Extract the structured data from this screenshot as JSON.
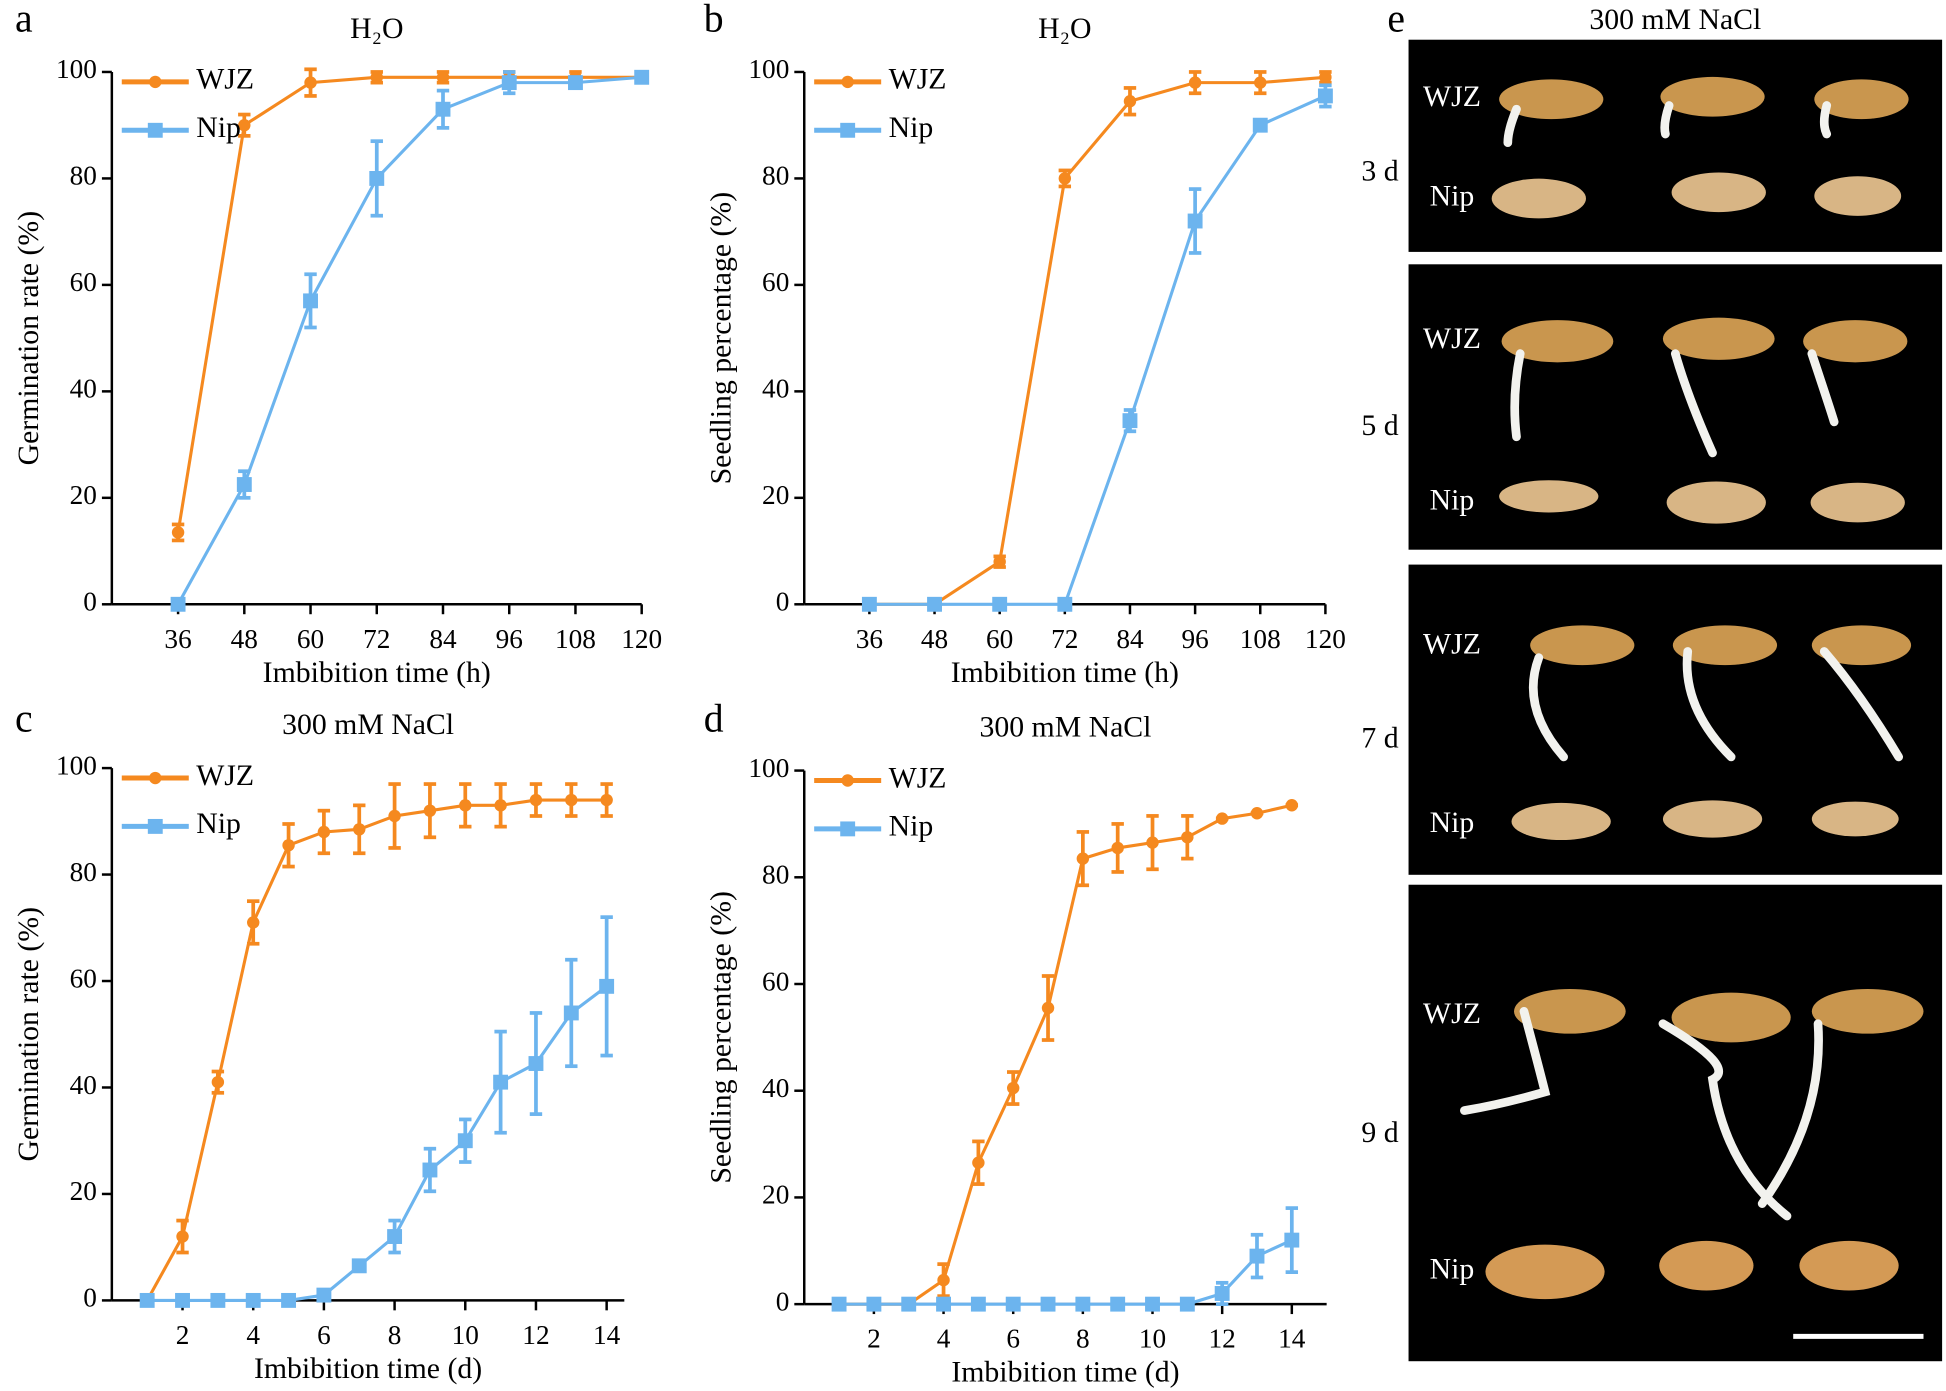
{
  "chart_data": [
    {
      "type": "line",
      "label": "a",
      "title": "H₂O",
      "xlabel": "Imbibition time (h)",
      "ylabel": "Germination rate (%)",
      "x": [
        36,
        48,
        60,
        72,
        84,
        96,
        108,
        120
      ],
      "xlim": [
        24,
        120
      ],
      "xticks": [
        36,
        48,
        60,
        72,
        84,
        96,
        108,
        120
      ],
      "ylim": [
        0,
        100
      ],
      "yticks": [
        0,
        20,
        40,
        60,
        80,
        100
      ],
      "legend": "upper left",
      "series": [
        {
          "name": "WJZ",
          "color": "#f5891f",
          "marker": "circle",
          "values": [
            13.5,
            90,
            98,
            99,
            99,
            99,
            99,
            99
          ],
          "errors": [
            1.5,
            2,
            2.5,
            1,
            1,
            1,
            1,
            0.5
          ]
        },
        {
          "name": "Nip",
          "color": "#6cb4ee",
          "marker": "square",
          "values": [
            0,
            22.5,
            57,
            80,
            93,
            98,
            98,
            99
          ],
          "errors": [
            0,
            2.5,
            5,
            7,
            3.5,
            2,
            1,
            0.5
          ]
        }
      ]
    },
    {
      "type": "line",
      "label": "b",
      "title": "H₂O",
      "xlabel": "Imbibition time (h)",
      "ylabel": "Seedling percentage (%)",
      "x": [
        36,
        48,
        60,
        72,
        84,
        96,
        108,
        120
      ],
      "xlim": [
        24,
        120
      ],
      "xticks": [
        36,
        48,
        60,
        72,
        84,
        96,
        108,
        120
      ],
      "ylim": [
        0,
        100
      ],
      "yticks": [
        0,
        20,
        40,
        60,
        80,
        100
      ],
      "legend": "upper left",
      "series": [
        {
          "name": "WJZ",
          "color": "#f5891f",
          "marker": "circle",
          "values": [
            0,
            0,
            8,
            80,
            94.5,
            98,
            98,
            99
          ],
          "errors": [
            0,
            0,
            1,
            1.5,
            2.5,
            2,
            2,
            1
          ]
        },
        {
          "name": "Nip",
          "color": "#6cb4ee",
          "marker": "square",
          "values": [
            0,
            0,
            0,
            0,
            34.5,
            72,
            90,
            95.5
          ],
          "errors": [
            0,
            0,
            0,
            0,
            2,
            6,
            0.5,
            2
          ]
        }
      ]
    },
    {
      "type": "line",
      "label": "c",
      "title": "300 mM NaCl",
      "xlabel": "Imbibition time (d)",
      "ylabel": "Germination rate (%)",
      "x": [
        1,
        2,
        3,
        4,
        5,
        6,
        7,
        8,
        9,
        10,
        11,
        12,
        13,
        14
      ],
      "xlim": [
        0,
        14.5
      ],
      "xticks": [
        2,
        4,
        6,
        8,
        10,
        12,
        14
      ],
      "ylim": [
        0,
        100
      ],
      "yticks": [
        0,
        20,
        40,
        60,
        80,
        100
      ],
      "legend": "upper left",
      "series": [
        {
          "name": "WJZ",
          "color": "#f5891f",
          "marker": "circle",
          "values": [
            0,
            12,
            41,
            71,
            85.5,
            88,
            88.5,
            91,
            92,
            93,
            93,
            94,
            94,
            94
          ],
          "errors": [
            0,
            3,
            2,
            4,
            4,
            4,
            4.5,
            6,
            5,
            4,
            4,
            3,
            3,
            3
          ]
        },
        {
          "name": "Nip",
          "color": "#6cb4ee",
          "marker": "square",
          "values": [
            0,
            0,
            0,
            0,
            0,
            1,
            6.5,
            12,
            24.5,
            30,
            41,
            44.5,
            54,
            59
          ],
          "errors": [
            0,
            0,
            0,
            0,
            0,
            0.5,
            1,
            3,
            4,
            4,
            9.5,
            9.5,
            10,
            13
          ]
        }
      ]
    },
    {
      "type": "line",
      "label": "d",
      "title": "300 mM NaCl",
      "xlabel": "Imbibition time (d)",
      "ylabel": "Seedling percentage (%)",
      "x": [
        1,
        2,
        3,
        4,
        5,
        6,
        7,
        8,
        9,
        10,
        11,
        12,
        13,
        14
      ],
      "xlim": [
        0,
        15
      ],
      "xticks": [
        2,
        4,
        6,
        8,
        10,
        12,
        14
      ],
      "ylim": [
        0,
        100
      ],
      "yticks": [
        0,
        20,
        40,
        60,
        80,
        100
      ],
      "legend": "upper left",
      "series": [
        {
          "name": "WJZ",
          "color": "#f5891f",
          "marker": "circle",
          "values": [
            0,
            0,
            0,
            4.5,
            26.5,
            40.5,
            55.5,
            83.5,
            85.5,
            86.5,
            87.5,
            91,
            92,
            93.5
          ],
          "errors": [
            0,
            0,
            0,
            3,
            4,
            3,
            6,
            5,
            4.5,
            5,
            4,
            0,
            0,
            0
          ]
        },
        {
          "name": "Nip",
          "color": "#6cb4ee",
          "marker": "square",
          "values": [
            0,
            0,
            0,
            0,
            0,
            0,
            0,
            0,
            0,
            0,
            0,
            2,
            9,
            12
          ],
          "errors": [
            0,
            0,
            0,
            0,
            0,
            0,
            0,
            0,
            0,
            0,
            0,
            2,
            4,
            6
          ]
        }
      ]
    }
  ],
  "photo_panel": {
    "label": "e",
    "title": "300 mM NaCl",
    "rows": [
      {
        "day": "3 d",
        "top": "WJZ",
        "bottom": "Nip"
      },
      {
        "day": "5 d",
        "top": "WJZ",
        "bottom": "Nip"
      },
      {
        "day": "7 d",
        "top": "WJZ",
        "bottom": "Nip"
      },
      {
        "day": "9 d",
        "top": "WJZ",
        "bottom": "Nip"
      }
    ]
  }
}
